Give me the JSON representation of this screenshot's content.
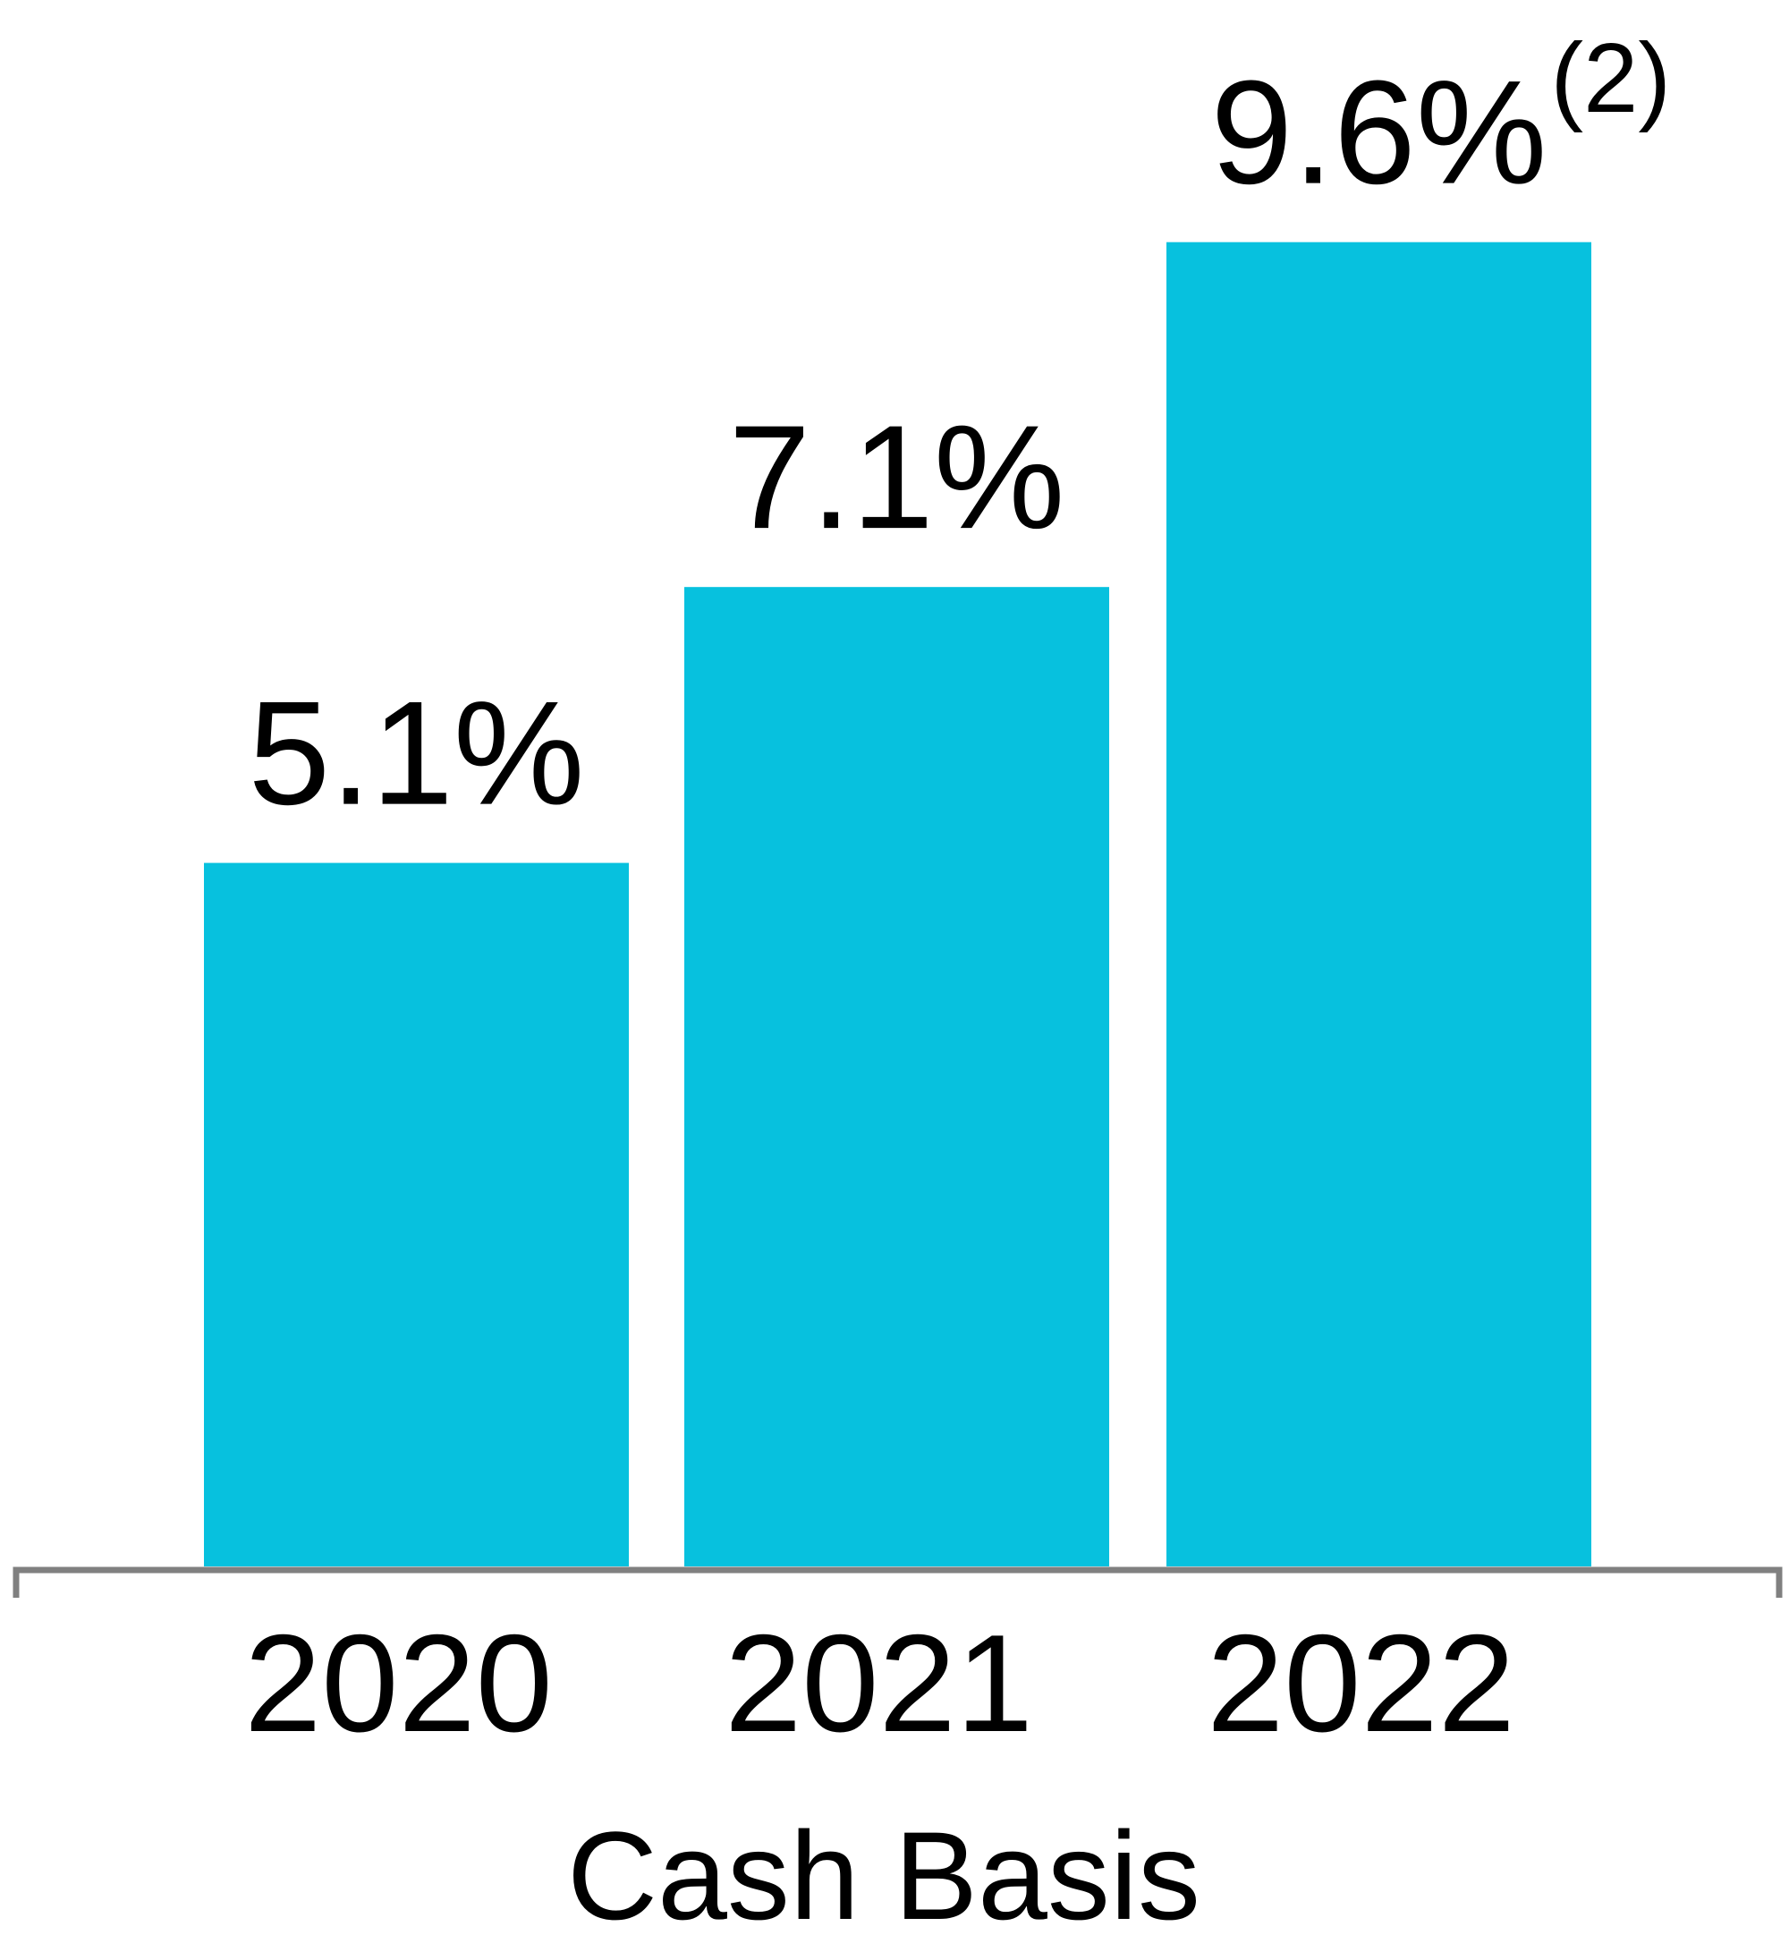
{
  "chart_data": {
    "type": "bar",
    "title": "",
    "xlabel": "Cash Basis",
    "ylabel": "",
    "categories": [
      "2020",
      "2021",
      "2022"
    ],
    "values": [
      5.1,
      7.1,
      9.6
    ],
    "data_labels": [
      "5.1%",
      "7.1%",
      "9.6%"
    ],
    "footnotes": [
      "",
      "",
      "(2)"
    ],
    "ylim": [
      0,
      9.6
    ],
    "grid": false,
    "legend": "none",
    "colors": {
      "bar": "#07C1DE",
      "axis": "#808080",
      "text": "#000000"
    }
  }
}
